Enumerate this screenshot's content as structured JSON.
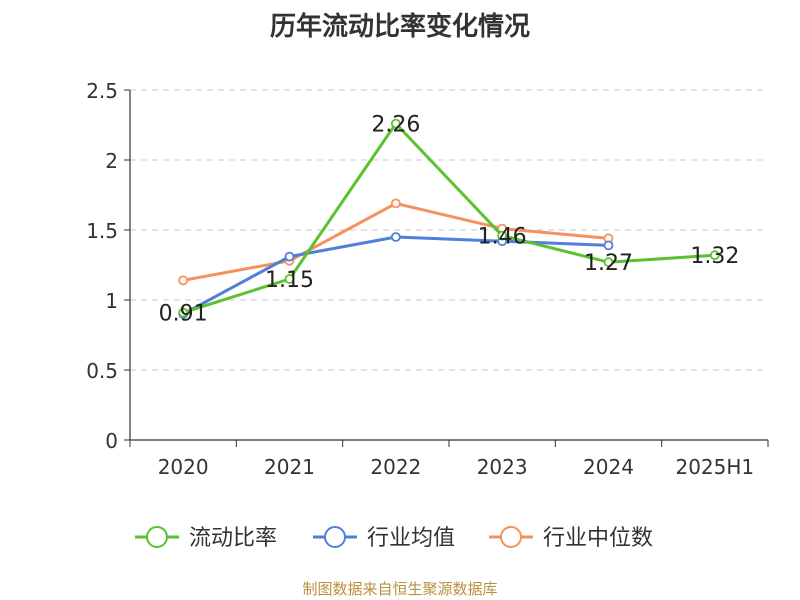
{
  "page": {
    "source": "制图数据来自恒生聚源数据库"
  },
  "chart_data": {
    "type": "line",
    "title": "历年流动比率变化情况",
    "xlabel": "",
    "ylabel": "",
    "categories": [
      "2020",
      "2021",
      "2022",
      "2023",
      "2024",
      "2025H1"
    ],
    "ylim": [
      0,
      2.5
    ],
    "yticks": [
      "0",
      "0.5",
      "1",
      "1.5",
      "2",
      "2.5"
    ],
    "grid": true,
    "legend_position": "bottom",
    "series": [
      {
        "name": "流动比率",
        "color": "#5bc12e",
        "values": [
          0.91,
          1.15,
          2.26,
          1.46,
          1.27,
          1.32
        ],
        "labels": [
          "0.91",
          "1.15",
          "2.26",
          "1.46",
          "1.27",
          "1.32"
        ]
      },
      {
        "name": "行业均值",
        "color": "#4f7fd9",
        "values": [
          0.9,
          1.31,
          1.45,
          1.42,
          1.39,
          null
        ],
        "labels": []
      },
      {
        "name": "行业中位数",
        "color": "#f4925f",
        "values": [
          1.14,
          1.28,
          1.69,
          1.51,
          1.44,
          null
        ],
        "labels": []
      }
    ]
  }
}
